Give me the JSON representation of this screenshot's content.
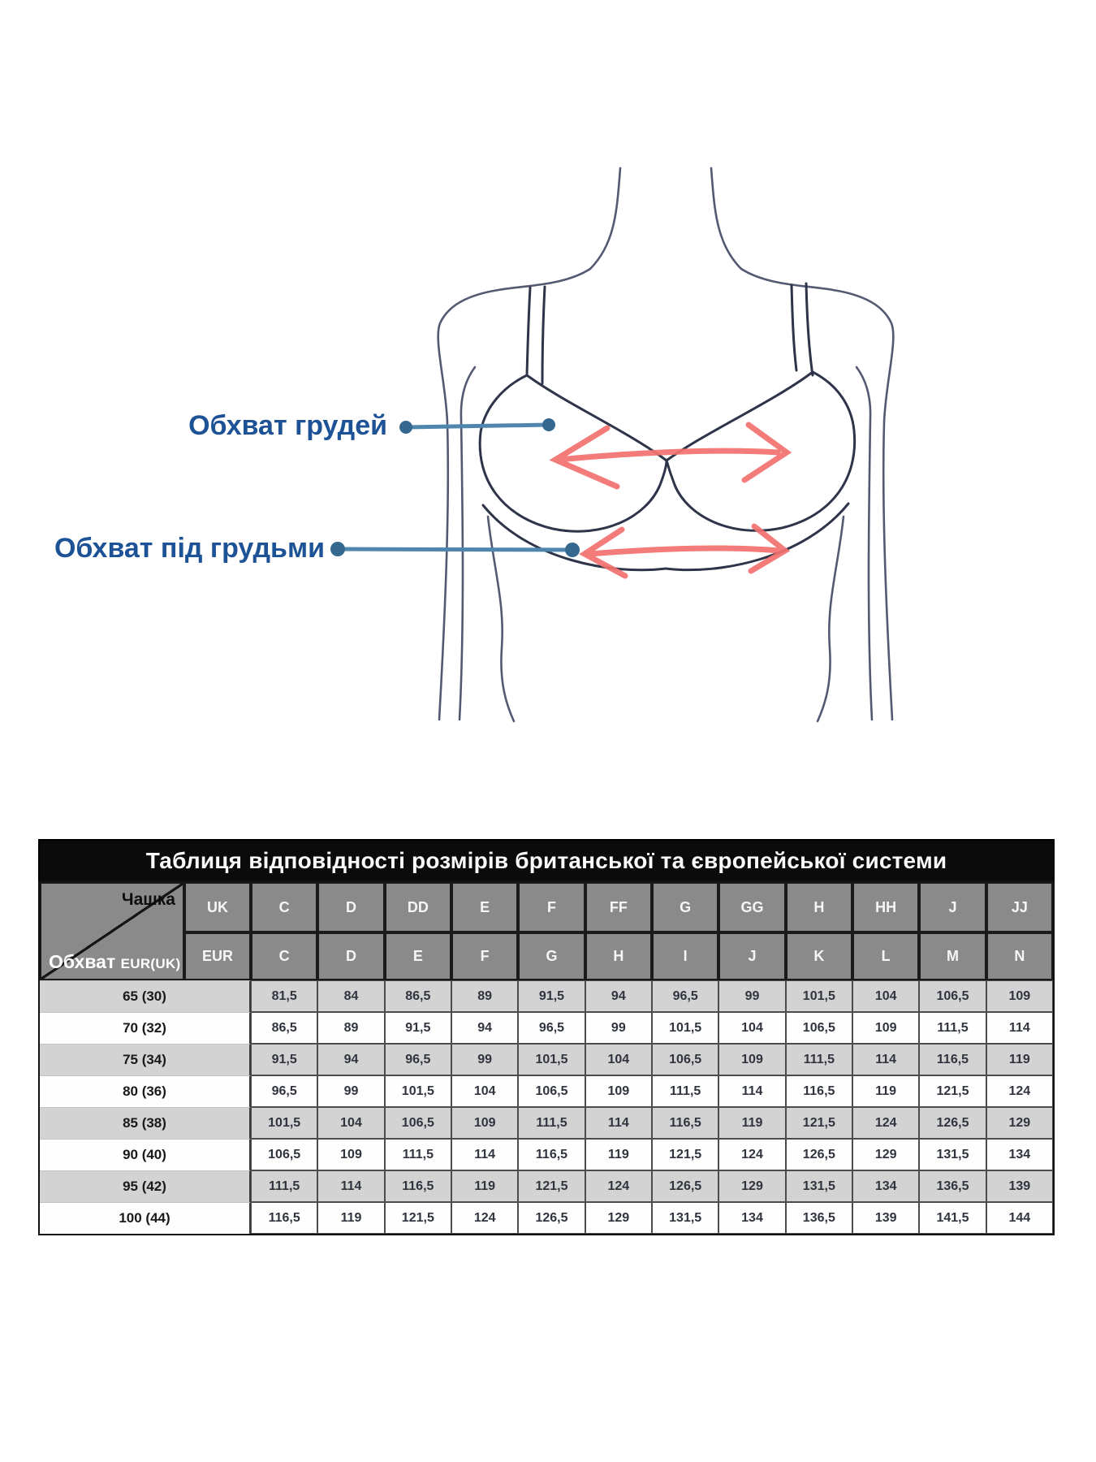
{
  "diagram": {
    "labels": {
      "bust": "Обхват грудей",
      "underbust": "Обхват під грудьми"
    },
    "colors": {
      "label_text": "#1d5296",
      "callout_line": "#4e86ad",
      "callout_dot": "#35688f",
      "arrow": "#f3716f",
      "figure_outline": "#414863",
      "bra_outline": "#2e3449"
    }
  },
  "table": {
    "title": "Таблиця відповідності розмірів британської та європейської системи",
    "corner": {
      "top_right": "Чашка",
      "bottom_left": "Обхват",
      "bottom_left_small": "EUR(UK)"
    },
    "row_header_labels": {
      "uk": "UK",
      "eur": "EUR"
    },
    "uk_cups": [
      "C",
      "D",
      "DD",
      "E",
      "F",
      "FF",
      "G",
      "GG",
      "H",
      "HH",
      "J",
      "JJ"
    ],
    "eur_cups": [
      "C",
      "D",
      "E",
      "F",
      "G",
      "H",
      "I",
      "J",
      "K",
      "L",
      "M",
      "N"
    ],
    "rows": [
      {
        "band": "65 (30)",
        "values": [
          "81,5",
          "84",
          "86,5",
          "89",
          "91,5",
          "94",
          "96,5",
          "99",
          "101,5",
          "104",
          "106,5",
          "109"
        ]
      },
      {
        "band": "70 (32)",
        "values": [
          "86,5",
          "89",
          "91,5",
          "94",
          "96,5",
          "99",
          "101,5",
          "104",
          "106,5",
          "109",
          "111,5",
          "114"
        ]
      },
      {
        "band": "75 (34)",
        "values": [
          "91,5",
          "94",
          "96,5",
          "99",
          "101,5",
          "104",
          "106,5",
          "109",
          "111,5",
          "114",
          "116,5",
          "119"
        ]
      },
      {
        "band": "80 (36)",
        "values": [
          "96,5",
          "99",
          "101,5",
          "104",
          "106,5",
          "109",
          "111,5",
          "114",
          "116,5",
          "119",
          "121,5",
          "124"
        ]
      },
      {
        "band": "85 (38)",
        "values": [
          "101,5",
          "104",
          "106,5",
          "109",
          "111,5",
          "114",
          "116,5",
          "119",
          "121,5",
          "124",
          "126,5",
          "129"
        ]
      },
      {
        "band": "90 (40)",
        "values": [
          "106,5",
          "109",
          "111,5",
          "114",
          "116,5",
          "119",
          "121,5",
          "124",
          "126,5",
          "129",
          "131,5",
          "134"
        ]
      },
      {
        "band": "95 (42)",
        "values": [
          "111,5",
          "114",
          "116,5",
          "119",
          "121,5",
          "124",
          "126,5",
          "129",
          "131,5",
          "134",
          "136,5",
          "139"
        ]
      },
      {
        "band": "100 (44)",
        "values": [
          "116,5",
          "119",
          "121,5",
          "124",
          "126,5",
          "129",
          "131,5",
          "134",
          "136,5",
          "139",
          "141,5",
          "144"
        ]
      }
    ],
    "colors": {
      "title_bg": "#0b0b0b",
      "header_bg": "#8a8a8a",
      "row_shaded": "#d3d3d3",
      "row_plain": "#fefefe"
    }
  }
}
